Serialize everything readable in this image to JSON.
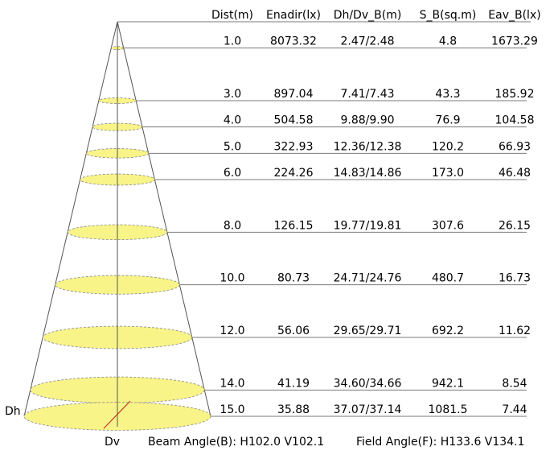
{
  "headers": [
    "Dist(m)",
    "Enadir(lx)",
    "Dh/Dv_B(m)",
    "S_B(sq.m)",
    "Eav_B(lx)"
  ],
  "rows": [
    {
      "dist": "1.0",
      "enadir": "8073.32",
      "dhdv": "2.47/2.48",
      "sb": "4.8",
      "eav": "1673.29"
    },
    {
      "dist": "3.0",
      "enadir": "897.04",
      "dhdv": "7.41/7.43",
      "sb": "43.3",
      "eav": "185.92"
    },
    {
      "dist": "4.0",
      "enadir": "504.58",
      "dhdv": "9.88/9.90",
      "sb": "76.9",
      "eav": "104.58"
    },
    {
      "dist": "5.0",
      "enadir": "322.93",
      "dhdv": "12.36/12.38",
      "sb": "120.2",
      "eav": "66.93"
    },
    {
      "dist": "6.0",
      "enadir": "224.26",
      "dhdv": "14.83/14.86",
      "sb": "173.0",
      "eav": "46.48"
    },
    {
      "dist": "8.0",
      "enadir": "126.15",
      "dhdv": "19.77/19.81",
      "sb": "307.6",
      "eav": "26.15"
    },
    {
      "dist": "10.0",
      "enadir": "80.73",
      "dhdv": "24.71/24.76",
      "sb": "480.7",
      "eav": "16.73"
    },
    {
      "dist": "12.0",
      "enadir": "56.06",
      "dhdv": "29.65/29.71",
      "sb": "692.2",
      "eav": "11.62"
    },
    {
      "dist": "14.0",
      "enadir": "41.19",
      "dhdv": "34.60/34.66",
      "sb": "942.1",
      "eav": "8.54"
    },
    {
      "dist": "15.0",
      "enadir": "35.88",
      "dhdv": "37.07/37.14",
      "sb": "1081.5",
      "eav": "7.44"
    }
  ],
  "labels": {
    "dh": "Dh",
    "dv": "Dv",
    "beam_angle": "Beam Angle(B): H102.0 V102.1",
    "field_angle": "Field Angle(F): H133.6 V134.1"
  },
  "colors": {
    "ellipse_fill": "#f8f488",
    "line": "#7a7a7a",
    "dv_line": "#c0392b"
  }
}
